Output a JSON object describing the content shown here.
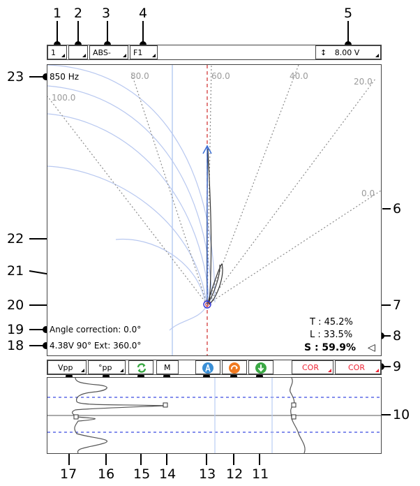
{
  "callouts": {
    "top": [
      "1",
      "2",
      "3",
      "4",
      "5"
    ],
    "right": [
      "6",
      "7",
      "8",
      "9",
      "10"
    ],
    "left": [
      "23",
      "22",
      "21",
      "20",
      "19",
      "18"
    ],
    "bottom": [
      "17",
      "16",
      "15",
      "14",
      "13",
      "12",
      "11"
    ]
  },
  "top_toolbar": {
    "channel": "1",
    "slot2": "",
    "mode": "ABS-",
    "filter": "F1",
    "scale": "8.00 V",
    "scale_icon": "vertical-arrows-icon"
  },
  "impedance_plane": {
    "frequency": "850 Hz",
    "angle_labels": [
      "100.0",
      "80.0",
      "60.0",
      "40.0",
      "20.0",
      "0.0"
    ],
    "angle_correction": "Angle correction:  0.0°",
    "status_line": "4.38V 90°  Ext: 360.0°",
    "readings": {
      "t": "T : 45.2%",
      "l": "L : 33.5%",
      "s": "S : 59.9%",
      "s_marker": "◁"
    }
  },
  "bottom_toolbar": {
    "vpp": "Vpp",
    "deg_pp": "°pp",
    "m": "M",
    "cor1": "COR",
    "cor2": "COR",
    "icons": [
      "refresh-icon",
      "compass-icon",
      "arrow-icon",
      "download-icon"
    ]
  },
  "colors": {
    "accent_blue": "#3a8fd6",
    "icon_orange": "#f07a21",
    "icon_green": "#3aa844",
    "cor_red": "#e22233",
    "crosshair_red": "#d23a3a",
    "curve_blue": "#b8c8f0"
  }
}
